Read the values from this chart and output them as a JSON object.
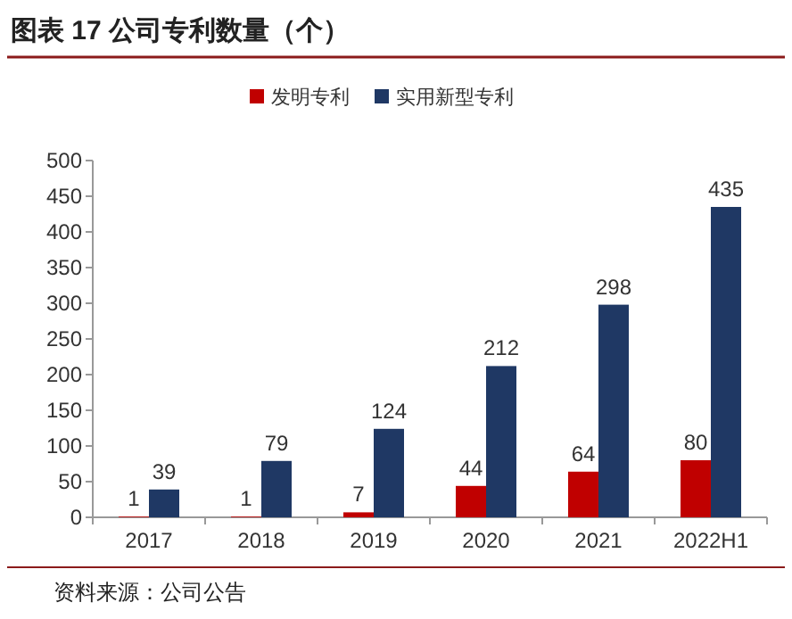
{
  "chart_data": {
    "type": "bar",
    "title": "图表 17 公司专利数量（个）",
    "categories": [
      "2017",
      "2018",
      "2019",
      "2020",
      "2021",
      "2022H1"
    ],
    "series": [
      {
        "name": "发明专利",
        "color": "#c00000",
        "values": [
          1,
          1,
          7,
          44,
          64,
          80
        ]
      },
      {
        "name": "实用新型专利",
        "color": "#1f3864",
        "values": [
          39,
          79,
          124,
          212,
          298,
          435
        ]
      }
    ],
    "ylim": [
      0,
      500
    ],
    "yticks": [
      0,
      50,
      100,
      150,
      200,
      250,
      300,
      350,
      400,
      450,
      500
    ],
    "data_labels": true,
    "legend": "top",
    "grid": false,
    "annotations": [
      "资料来源：公司公告"
    ]
  }
}
